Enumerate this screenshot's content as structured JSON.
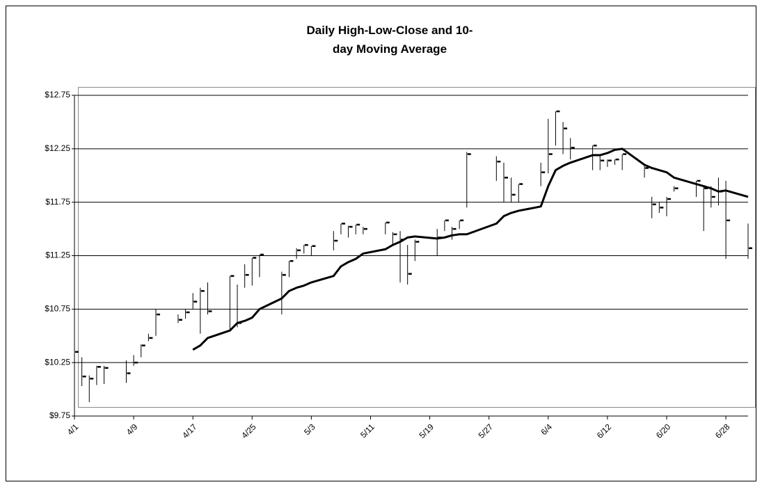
{
  "chart_data": {
    "type": "hlc",
    "title": "Daily High-Low-Close and 10-day Moving Average",
    "x": [
      "4/1",
      "4/2",
      "4/3",
      "4/4",
      "4/5",
      "4/8",
      "4/9",
      "4/10",
      "4/11",
      "4/12",
      "4/15",
      "4/16",
      "4/17",
      "4/18",
      "4/19",
      "4/22",
      "4/23",
      "4/24",
      "4/25",
      "4/26",
      "4/29",
      "4/30",
      "5/1",
      "5/2",
      "5/3",
      "5/6",
      "5/7",
      "5/8",
      "5/9",
      "5/10",
      "5/13",
      "5/14",
      "5/15",
      "5/16",
      "5/17",
      "5/20",
      "5/21",
      "5/22",
      "5/23",
      "5/24",
      "5/28",
      "5/29",
      "5/30",
      "5/31",
      "6/3",
      "6/4",
      "6/5",
      "6/6",
      "6/7",
      "6/10",
      "6/11",
      "6/12",
      "6/13",
      "6/14",
      "6/17",
      "6/18",
      "6/19",
      "6/20",
      "6/21",
      "6/24",
      "6/25",
      "6/26",
      "6/27",
      "6/28",
      "7/1"
    ],
    "high": [
      10.5,
      10.3,
      10.13,
      10.22,
      10.22,
      10.27,
      10.32,
      10.42,
      10.52,
      10.75,
      10.7,
      10.75,
      10.9,
      10.95,
      11.0,
      11.06,
      10.98,
      11.17,
      11.23,
      11.26,
      11.1,
      11.2,
      11.32,
      11.35,
      11.34,
      11.48,
      11.55,
      11.53,
      11.54,
      11.52,
      11.56,
      11.47,
      11.48,
      11.35,
      11.4,
      11.5,
      11.58,
      11.52,
      11.58,
      12.22,
      12.18,
      12.12,
      11.98,
      11.92,
      12.12,
      12.53,
      12.6,
      12.5,
      12.35,
      12.28,
      12.18,
      12.15,
      12.15,
      12.2,
      12.1,
      11.8,
      11.75,
      11.8,
      11.9,
      11.95,
      11.9,
      11.9,
      11.98,
      11.95,
      11.55
    ],
    "low": [
      10.13,
      10.03,
      9.88,
      10.04,
      10.05,
      10.06,
      10.22,
      10.3,
      10.45,
      10.5,
      10.62,
      10.66,
      10.75,
      10.52,
      10.7,
      10.55,
      10.58,
      10.95,
      10.97,
      11.05,
      10.7,
      11.05,
      11.22,
      11.27,
      11.25,
      11.3,
      11.45,
      11.42,
      11.45,
      11.45,
      11.45,
      11.35,
      11.0,
      10.98,
      11.2,
      11.25,
      11.48,
      11.4,
      11.5,
      11.7,
      11.95,
      11.75,
      11.75,
      11.75,
      11.9,
      12.02,
      12.28,
      12.2,
      12.15,
      12.05,
      12.05,
      12.08,
      12.1,
      12.05,
      11.98,
      11.6,
      11.65,
      11.62,
      11.85,
      11.8,
      11.48,
      11.7,
      11.72,
      11.22,
      11.22
    ],
    "close": [
      10.35,
      10.12,
      10.1,
      10.21,
      10.2,
      10.15,
      10.25,
      10.41,
      10.48,
      10.7,
      10.65,
      10.72,
      10.82,
      10.92,
      10.73,
      11.06,
      10.62,
      11.07,
      11.23,
      11.26,
      11.07,
      11.2,
      11.3,
      11.35,
      11.34,
      11.39,
      11.55,
      11.52,
      11.54,
      11.5,
      11.56,
      11.45,
      11.4,
      11.08,
      11.38,
      11.42,
      11.58,
      11.5,
      11.58,
      12.2,
      12.13,
      11.98,
      11.82,
      11.92,
      12.03,
      12.2,
      12.6,
      12.44,
      12.26,
      12.28,
      12.14,
      12.14,
      12.15,
      12.2,
      12.07,
      11.73,
      11.7,
      11.78,
      11.88,
      11.95,
      11.88,
      11.8,
      11.85,
      11.58,
      11.32
    ],
    "moving_average": [
      null,
      null,
      null,
      null,
      null,
      null,
      null,
      null,
      null,
      null,
      null,
      null,
      10.37,
      10.41,
      10.48,
      10.55,
      10.62,
      10.64,
      10.67,
      10.75,
      10.85,
      10.92,
      10.95,
      10.97,
      11.0,
      11.06,
      11.15,
      11.19,
      11.22,
      11.27,
      11.31,
      11.35,
      11.38,
      11.42,
      11.43,
      11.41,
      11.42,
      11.44,
      11.45,
      11.45,
      11.55,
      11.62,
      11.65,
      11.67,
      11.71,
      11.9,
      12.05,
      12.09,
      12.12,
      12.19,
      12.19,
      12.21,
      12.24,
      12.25,
      12.1,
      12.07,
      12.05,
      12.03,
      11.98,
      11.92,
      11.9,
      11.88,
      11.85,
      11.86,
      11.8
    ],
    "color": "#000000",
    "xlim": [
      "4/1",
      "7/1"
    ],
    "xticks": [
      "4/1",
      "4/9",
      "4/17",
      "4/25",
      "5/3",
      "5/11",
      "5/19",
      "5/27",
      "6/4",
      "6/12",
      "6/20",
      "6/28"
    ],
    "ylim": [
      9.75,
      12.75
    ],
    "yticks": [
      {
        "value": 9.75,
        "label": "$9.75"
      },
      {
        "value": 10.25,
        "label": "$10.25"
      },
      {
        "value": 10.75,
        "label": "$10.75"
      },
      {
        "value": 11.25,
        "label": "$11.25"
      },
      {
        "value": 11.75,
        "label": "$11.75"
      },
      {
        "value": 12.25,
        "label": "$12.25"
      },
      {
        "value": 12.75,
        "label": "$12.75"
      }
    ],
    "grid": true
  }
}
